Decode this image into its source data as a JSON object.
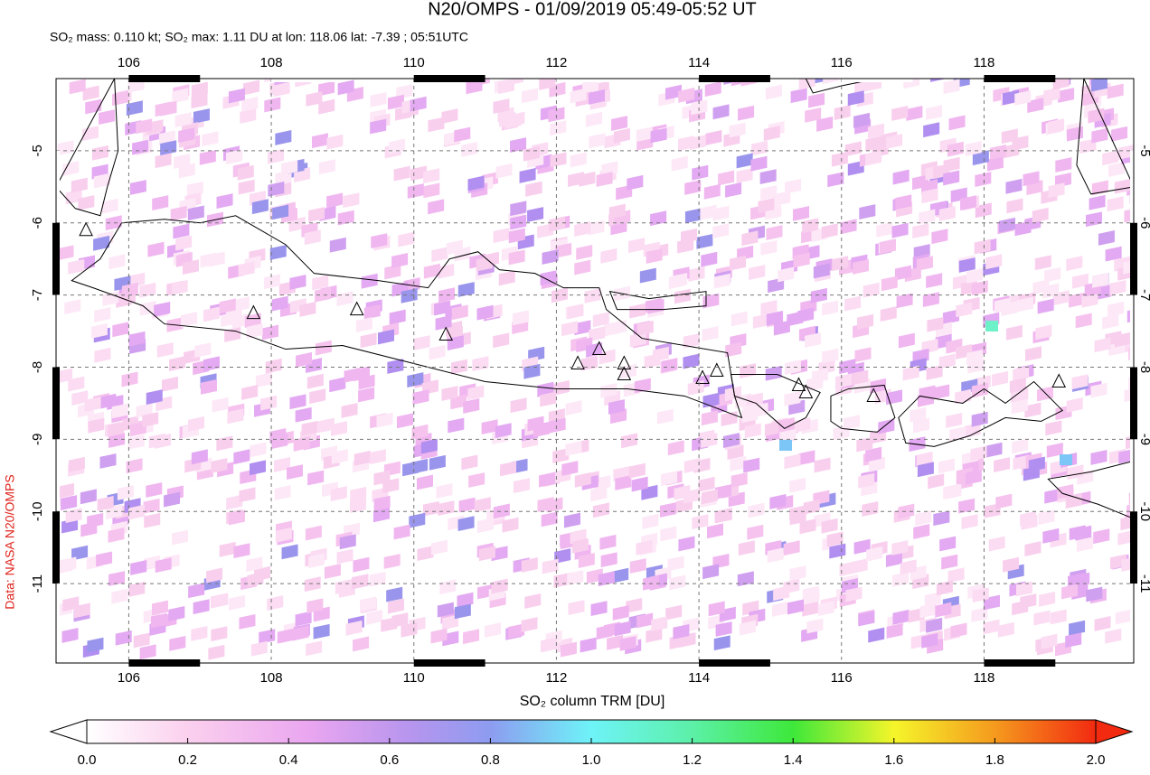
{
  "title": "N20/OMPS - 01/09/2019 05:49-05:52 UT",
  "subtitle": "SO₂ mass: 0.110 kt; SO₂ max: 1.11 DU at lon: 118.06 lat: -7.39 ; 05:51UTC",
  "credit": "Data: NASA N20/OMPS",
  "map": {
    "xlim": [
      104.98,
      120.1
    ],
    "ylim": [
      -12.1,
      -4.0
    ],
    "xticks": [
      106,
      108,
      110,
      112,
      114,
      116,
      118
    ],
    "yticks": [
      -5,
      -6,
      -7,
      -8,
      -9,
      -10,
      -11
    ]
  },
  "colorbar": {
    "label": "SO₂ column TRM [DU]",
    "range": [
      0,
      2
    ],
    "ticks": [
      {
        "value": 0,
        "label": "0.0"
      },
      {
        "value": 0.2,
        "label": "0.2"
      },
      {
        "value": 0.4,
        "label": "0.4"
      },
      {
        "value": 0.6,
        "label": "0.6"
      },
      {
        "value": 0.8,
        "label": "0.8"
      },
      {
        "value": 1.0,
        "label": "1.0"
      },
      {
        "value": 1.2,
        "label": "1.2"
      },
      {
        "value": 1.4,
        "label": "1.4"
      },
      {
        "value": 1.6,
        "label": "1.6"
      },
      {
        "value": 1.8,
        "label": "1.8"
      },
      {
        "value": 2.0,
        "label": "2.0"
      }
    ]
  }
}
